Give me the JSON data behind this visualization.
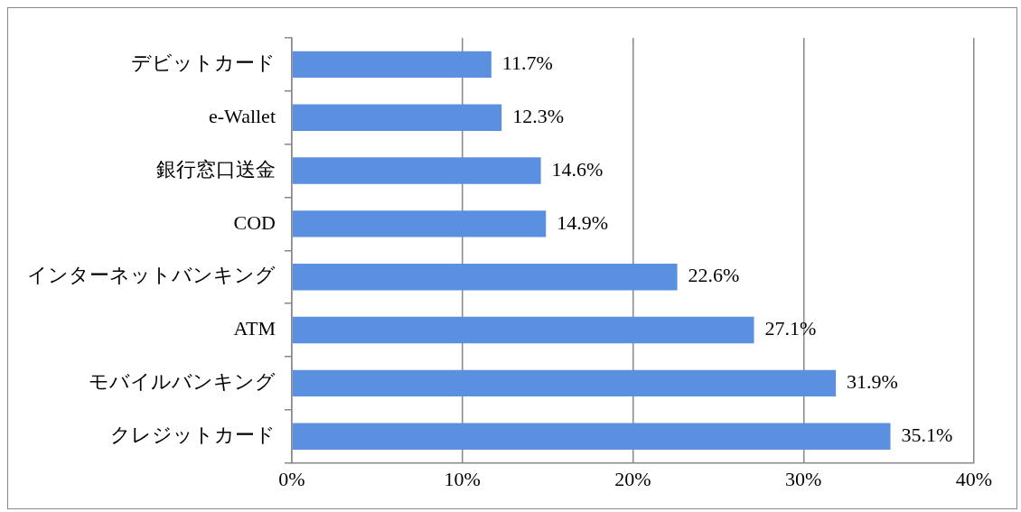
{
  "chart_data": {
    "type": "bar",
    "orientation": "horizontal",
    "categories": [
      "デビットカード",
      "e-Wallet",
      "銀行窓口送金",
      "COD",
      "インターネットバンキング",
      "ATM",
      "モバイルバンキング",
      "クレジットカード"
    ],
    "values": [
      11.7,
      12.3,
      14.6,
      14.9,
      22.6,
      27.1,
      31.9,
      35.1
    ],
    "value_labels": [
      "11.7%",
      "12.3%",
      "14.6%",
      "14.9%",
      "22.6%",
      "27.1%",
      "31.9%",
      "35.1%"
    ],
    "color": "#5b8fe0",
    "xlim": [
      0,
      40
    ],
    "xticks": [
      {
        "value": 0,
        "label": "0%"
      },
      {
        "value": 10,
        "label": "10%"
      },
      {
        "value": 20,
        "label": "20%"
      },
      {
        "value": 30,
        "label": "30%"
      },
      {
        "value": 40,
        "label": "40%"
      }
    ],
    "grid": "x",
    "legend": false
  }
}
